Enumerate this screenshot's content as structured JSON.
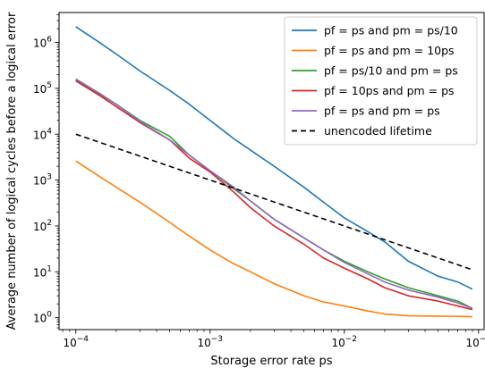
{
  "chart_data": {
    "type": "line",
    "xlabel": "Storage error rate ps",
    "ylabel": "Average number of logical cycles before a logical error",
    "xscale": "log",
    "yscale": "log",
    "xlim": [
      7.5e-05,
      0.11
    ],
    "ylim": [
      0.55,
      4500000.0
    ],
    "x_ticks": [
      {
        "value": 0.0001,
        "base": "10",
        "exp": "−4"
      },
      {
        "value": 0.001,
        "base": "10",
        "exp": "−3"
      },
      {
        "value": 0.01,
        "base": "10",
        "exp": "−2"
      },
      {
        "value": 0.1,
        "base": "10",
        "exp": "−1"
      }
    ],
    "y_ticks": [
      {
        "value": 1,
        "base": "10",
        "exp": "0"
      },
      {
        "value": 10,
        "base": "10",
        "exp": "1"
      },
      {
        "value": 100,
        "base": "10",
        "exp": "2"
      },
      {
        "value": 1000,
        "base": "10",
        "exp": "3"
      },
      {
        "value": 10000,
        "base": "10",
        "exp": "4"
      },
      {
        "value": 100000,
        "base": "10",
        "exp": "5"
      },
      {
        "value": 1000000,
        "base": "10",
        "exp": "6"
      }
    ],
    "grid": false,
    "legend_position": "top-right",
    "series": [
      {
        "name": "pf = ps and pm = ps/10",
        "color": "#1f77b4",
        "style": "solid",
        "x": [
          0.0001,
          0.00015,
          0.0002,
          0.0003,
          0.0005,
          0.0007,
          0.001,
          0.0015,
          0.002,
          0.003,
          0.005,
          0.007,
          0.01,
          0.015,
          0.02,
          0.03,
          0.05,
          0.07,
          0.09
        ],
        "y": [
          2200000,
          1000000,
          560000,
          240000,
          90000,
          45000,
          20000,
          8000,
          4500,
          2000,
          700,
          330,
          150,
          75,
          45,
          17,
          8,
          6,
          4.2
        ]
      },
      {
        "name": "pf = ps and pm = 10ps",
        "color": "#ff7f0e",
        "style": "solid",
        "x": [
          0.0001,
          0.00015,
          0.0002,
          0.0003,
          0.0005,
          0.0007,
          0.001,
          0.0015,
          0.002,
          0.003,
          0.005,
          0.007,
          0.01,
          0.015,
          0.02,
          0.03,
          0.05,
          0.07,
          0.09
        ],
        "y": [
          2600,
          1200,
          700,
          330,
          120,
          60,
          30,
          15,
          10,
          5.5,
          3,
          2.2,
          1.8,
          1.4,
          1.2,
          1.1,
          1.08,
          1.07,
          1.05
        ]
      },
      {
        "name": "pf = ps/10 and pm = ps",
        "color": "#2ca02c",
        "style": "solid",
        "x": [
          0.0001,
          0.00015,
          0.0002,
          0.0003,
          0.0005,
          0.0007,
          0.001,
          0.0015,
          0.002,
          0.003,
          0.005,
          0.007,
          0.01,
          0.015,
          0.02,
          0.03,
          0.05,
          0.07,
          0.09
        ],
        "y": [
          150000,
          75000,
          45000,
          20000,
          9000,
          3500,
          1600,
          650,
          350,
          140,
          55,
          30,
          17,
          10,
          7,
          4.5,
          3,
          2.3,
          1.6
        ]
      },
      {
        "name": "pf = 10ps and pm = ps",
        "color": "#d62728",
        "style": "solid",
        "x": [
          0.0001,
          0.00015,
          0.0002,
          0.0003,
          0.0005,
          0.0007,
          0.001,
          0.0015,
          0.002,
          0.003,
          0.005,
          0.007,
          0.01,
          0.015,
          0.02,
          0.03,
          0.05,
          0.07,
          0.09
        ],
        "y": [
          145000,
          70000,
          40000,
          18000,
          7500,
          3000,
          1500,
          550,
          250,
          100,
          40,
          20,
          12,
          7,
          4.5,
          3,
          2.3,
          1.8,
          1.5
        ]
      },
      {
        "name": "pf = ps and pm = ps",
        "color": "#9467bd",
        "style": "solid",
        "x": [
          0.0001,
          0.00015,
          0.0002,
          0.0003,
          0.0005,
          0.0007,
          0.001,
          0.0015,
          0.002,
          0.003,
          0.005,
          0.007,
          0.01,
          0.015,
          0.02,
          0.03,
          0.05,
          0.07,
          0.09
        ],
        "y": [
          160000,
          78000,
          45000,
          19000,
          7500,
          3500,
          1600,
          700,
          350,
          140,
          55,
          30,
          16,
          9,
          6,
          4,
          2.8,
          2.1,
          1.6
        ]
      },
      {
        "name": "unencoded lifetime",
        "color": "#000000",
        "style": "dashed",
        "x": [
          0.0001,
          0.09
        ],
        "y": [
          10000,
          11.1
        ]
      }
    ]
  }
}
